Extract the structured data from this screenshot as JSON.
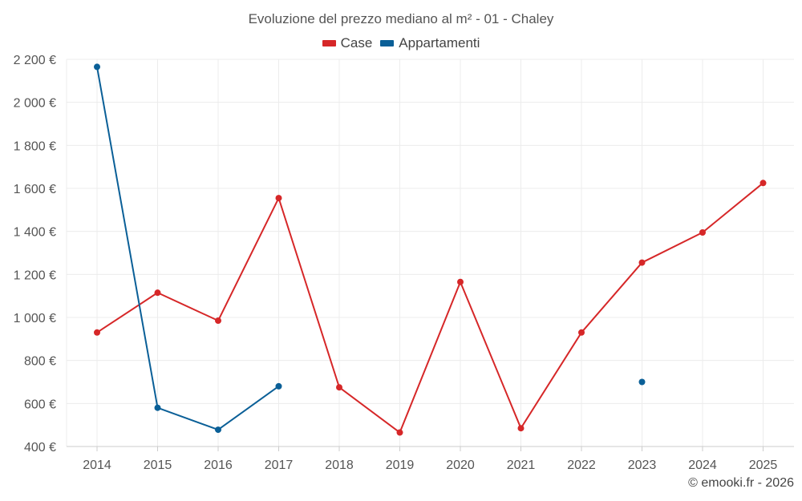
{
  "chart_data": {
    "type": "line",
    "title": "Evoluzione del prezzo mediano al m² - 01 - Chaley",
    "categories": [
      "2014",
      "2015",
      "2016",
      "2017",
      "2018",
      "2019",
      "2020",
      "2021",
      "2022",
      "2023",
      "2024",
      "2025"
    ],
    "series": [
      {
        "name": "Case",
        "color": "#d62728",
        "values": [
          930,
          1115,
          985,
          1555,
          675,
          465,
          1165,
          485,
          930,
          1255,
          1395,
          1625
        ]
      },
      {
        "name": "Appartamenti",
        "color": "#0a5f97",
        "values": [
          2165,
          580,
          478,
          680,
          null,
          null,
          null,
          null,
          null,
          700,
          null,
          null
        ]
      }
    ],
    "ylim": [
      400,
      2200
    ],
    "yticks": [
      400,
      600,
      800,
      1000,
      1200,
      1400,
      1600,
      1800,
      2000,
      2200
    ],
    "ytick_labels": [
      "400 €",
      "600 €",
      "800 €",
      "1 000 €",
      "1 200 €",
      "1 400 €",
      "1 600 €",
      "1 800 €",
      "2 000 €",
      "2 200 €"
    ],
    "grid": true,
    "legend_position": "top-center"
  },
  "credit": "© emooki.fr - 2026"
}
